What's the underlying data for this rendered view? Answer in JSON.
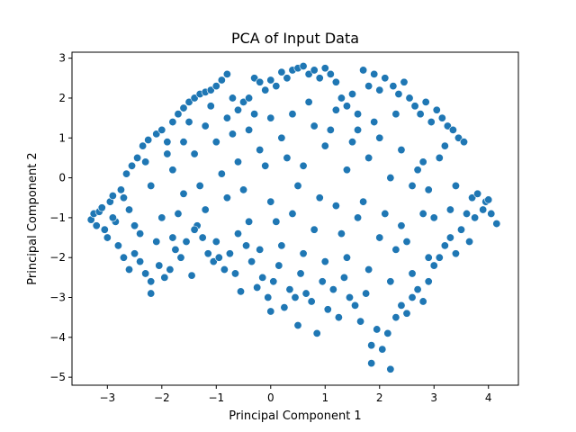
{
  "chart_data": {
    "type": "scatter",
    "title": "PCA of Input Data",
    "xlabel": "Principal Component 1",
    "ylabel": "Principal Component 2",
    "xlim": [
      -3.65,
      4.55
    ],
    "ylim": [
      -5.2,
      3.15
    ],
    "xticks": [
      -3,
      -2,
      -1,
      0,
      1,
      2,
      3,
      4
    ],
    "yticks": [
      -5,
      -4,
      -3,
      -2,
      -1,
      0,
      1,
      2,
      3
    ],
    "grid": false,
    "marker_color": "#1f77b4",
    "marker_edge_color": "#ffffff",
    "series": [
      {
        "points": [
          [
            -3.3,
            -1.05
          ],
          [
            -3.25,
            -0.9
          ],
          [
            -3.2,
            -1.2
          ],
          [
            -3.15,
            -0.85
          ],
          [
            -3.1,
            -0.75
          ],
          [
            -3.05,
            -1.3
          ],
          [
            -3.0,
            -1.5
          ],
          [
            -2.95,
            -0.6
          ],
          [
            -2.9,
            -0.45
          ],
          [
            -2.85,
            -1.1
          ],
          [
            -2.8,
            -1.7
          ],
          [
            -2.75,
            -0.3
          ],
          [
            -2.7,
            -2.0
          ],
          [
            -2.65,
            0.1
          ],
          [
            -2.6,
            -2.3
          ],
          [
            -2.55,
            0.3
          ],
          [
            -2.5,
            -1.9
          ],
          [
            -2.45,
            0.5
          ],
          [
            -2.4,
            -2.1
          ],
          [
            -2.35,
            0.8
          ],
          [
            -2.3,
            -2.4
          ],
          [
            -2.25,
            0.95
          ],
          [
            -2.2,
            -2.6
          ],
          [
            -2.2,
            -2.9
          ],
          [
            -2.1,
            1.1
          ],
          [
            -2.05,
            -2.2
          ],
          [
            -2.0,
            1.2
          ],
          [
            -1.95,
            -2.5
          ],
          [
            -1.9,
            0.6
          ],
          [
            -1.85,
            -2.3
          ],
          [
            -1.8,
            1.4
          ],
          [
            -1.75,
            -1.8
          ],
          [
            -1.7,
            1.6
          ],
          [
            -1.65,
            -2.0
          ],
          [
            -1.6,
            1.75
          ],
          [
            -1.55,
            -1.6
          ],
          [
            -1.5,
            1.9
          ],
          [
            -1.45,
            -2.45
          ],
          [
            -1.4,
            2.0
          ],
          [
            -1.35,
            -1.2
          ],
          [
            -1.3,
            2.1
          ],
          [
            -1.25,
            -1.5
          ],
          [
            -1.2,
            2.15
          ],
          [
            -1.15,
            -1.9
          ],
          [
            -1.1,
            2.2
          ],
          [
            -1.05,
            -2.1
          ],
          [
            -1.0,
            2.3
          ],
          [
            -0.95,
            -2.0
          ],
          [
            -0.9,
            2.45
          ],
          [
            -0.85,
            -2.3
          ],
          [
            -0.8,
            2.6
          ],
          [
            -0.75,
            -1.9
          ],
          [
            -0.7,
            2.0
          ],
          [
            -0.65,
            -2.4
          ],
          [
            -0.6,
            1.7
          ],
          [
            -0.55,
            -2.85
          ],
          [
            -0.5,
            1.9
          ],
          [
            -0.45,
            -1.7
          ],
          [
            -0.4,
            2.0
          ],
          [
            -0.35,
            -2.1
          ],
          [
            -0.3,
            2.5
          ],
          [
            -0.25,
            -2.75
          ],
          [
            -0.2,
            2.4
          ],
          [
            -0.15,
            -2.5
          ],
          [
            -0.1,
            2.2
          ],
          [
            -0.05,
            -3.0
          ],
          [
            0.0,
            2.45
          ],
          [
            0.0,
            -3.35
          ],
          [
            0.05,
            -2.6
          ],
          [
            0.1,
            2.3
          ],
          [
            0.15,
            -2.2
          ],
          [
            0.2,
            2.65
          ],
          [
            0.25,
            -3.25
          ],
          [
            0.3,
            2.5
          ],
          [
            0.35,
            -2.8
          ],
          [
            0.4,
            2.7
          ],
          [
            0.45,
            -3.0
          ],
          [
            0.5,
            2.75
          ],
          [
            0.5,
            -3.7
          ],
          [
            0.55,
            -2.4
          ],
          [
            0.6,
            2.8
          ],
          [
            0.65,
            -2.9
          ],
          [
            0.7,
            2.6
          ],
          [
            0.75,
            -3.1
          ],
          [
            0.8,
            2.7
          ],
          [
            0.85,
            -3.9
          ],
          [
            0.9,
            2.5
          ],
          [
            0.95,
            -2.6
          ],
          [
            1.0,
            2.75
          ],
          [
            1.05,
            -3.3
          ],
          [
            1.1,
            2.6
          ],
          [
            1.15,
            -2.8
          ],
          [
            1.2,
            2.4
          ],
          [
            1.25,
            -3.5
          ],
          [
            1.3,
            2.0
          ],
          [
            1.35,
            -2.5
          ],
          [
            1.4,
            1.8
          ],
          [
            1.45,
            -3.0
          ],
          [
            1.5,
            2.1
          ],
          [
            1.55,
            -3.2
          ],
          [
            1.6,
            1.6
          ],
          [
            1.65,
            -3.6
          ],
          [
            1.7,
            2.7
          ],
          [
            1.75,
            -2.9
          ],
          [
            1.8,
            2.3
          ],
          [
            1.85,
            -4.2
          ],
          [
            1.85,
            -4.65
          ],
          [
            1.9,
            2.6
          ],
          [
            1.95,
            -3.8
          ],
          [
            2.0,
            2.2
          ],
          [
            2.05,
            -4.3
          ],
          [
            2.1,
            2.5
          ],
          [
            2.15,
            -3.9
          ],
          [
            2.2,
            -4.8
          ],
          [
            2.25,
            2.3
          ],
          [
            2.3,
            -3.5
          ],
          [
            2.35,
            2.1
          ],
          [
            2.4,
            -3.2
          ],
          [
            2.45,
            2.4
          ],
          [
            2.5,
            -3.4
          ],
          [
            2.55,
            2.0
          ],
          [
            2.6,
            -3.0
          ],
          [
            2.65,
            1.8
          ],
          [
            2.7,
            -2.8
          ],
          [
            2.75,
            1.6
          ],
          [
            2.8,
            -3.1
          ],
          [
            2.85,
            1.9
          ],
          [
            2.9,
            -2.6
          ],
          [
            2.95,
            1.4
          ],
          [
            3.0,
            -2.2
          ],
          [
            3.05,
            1.7
          ],
          [
            3.1,
            -2.0
          ],
          [
            3.15,
            1.5
          ],
          [
            3.2,
            -1.7
          ],
          [
            3.25,
            1.3
          ],
          [
            3.3,
            -1.5
          ],
          [
            3.35,
            1.2
          ],
          [
            3.4,
            -1.9
          ],
          [
            3.45,
            1.0
          ],
          [
            3.5,
            -1.3
          ],
          [
            3.55,
            0.9
          ],
          [
            3.6,
            -0.9
          ],
          [
            3.65,
            -1.6
          ],
          [
            3.7,
            -0.5
          ],
          [
            3.75,
            -1.0
          ],
          [
            3.8,
            -0.4
          ],
          [
            3.9,
            -0.8
          ],
          [
            3.95,
            -0.6
          ],
          [
            4.0,
            -0.55
          ],
          [
            4.05,
            -0.9
          ],
          [
            4.15,
            -1.15
          ],
          [
            2.9,
            -0.3
          ],
          [
            -1.8,
            0.2
          ],
          [
            -1.6,
            -0.4
          ],
          [
            -1.4,
            0.6
          ],
          [
            -1.2,
            -0.8
          ],
          [
            -1.0,
            0.9
          ],
          [
            -0.8,
            -0.5
          ],
          [
            -0.6,
            0.4
          ],
          [
            -0.4,
            -1.1
          ],
          [
            -0.2,
            0.7
          ],
          [
            0.0,
            -0.6
          ],
          [
            0.2,
            1.0
          ],
          [
            0.4,
            -0.9
          ],
          [
            0.6,
            0.3
          ],
          [
            0.8,
            -1.3
          ],
          [
            1.0,
            0.8
          ],
          [
            1.2,
            -0.7
          ],
          [
            1.4,
            0.2
          ],
          [
            1.6,
            -1.0
          ],
          [
            1.8,
            0.5
          ],
          [
            2.0,
            -1.5
          ],
          [
            2.2,
            0.0
          ],
          [
            2.4,
            -1.2
          ],
          [
            2.6,
            -0.2
          ],
          [
            2.8,
            -0.9
          ],
          [
            -2.6,
            -0.8
          ],
          [
            -2.4,
            -1.4
          ],
          [
            -2.2,
            -0.2
          ],
          [
            -2.0,
            -1.0
          ],
          [
            -1.8,
            -1.5
          ],
          [
            -1.6,
            0.9
          ],
          [
            -1.4,
            -1.3
          ],
          [
            -1.2,
            1.3
          ],
          [
            -1.0,
            -1.6
          ],
          [
            -0.8,
            1.5
          ],
          [
            -0.6,
            -1.4
          ],
          [
            -0.4,
            1.2
          ],
          [
            -0.2,
            -1.8
          ],
          [
            0.0,
            1.5
          ],
          [
            0.2,
            -1.7
          ],
          [
            0.4,
            1.6
          ],
          [
            0.6,
            -1.9
          ],
          [
            0.8,
            1.3
          ],
          [
            1.0,
            -2.1
          ],
          [
            1.2,
            1.7
          ],
          [
            1.4,
            -2.0
          ],
          [
            1.6,
            1.2
          ],
          [
            1.8,
            -2.3
          ],
          [
            2.0,
            1.0
          ],
          [
            2.2,
            -2.6
          ],
          [
            2.4,
            0.7
          ],
          [
            2.6,
            -2.4
          ],
          [
            2.8,
            0.4
          ],
          [
            3.0,
            -1.0
          ],
          [
            3.2,
            0.8
          ],
          [
            3.4,
            -0.2
          ],
          [
            2.3,
            -1.8
          ],
          [
            -2.9,
            -1.0
          ],
          [
            -2.7,
            -0.5
          ],
          [
            -2.5,
            -1.2
          ],
          [
            -2.3,
            0.4
          ],
          [
            -2.1,
            -1.6
          ],
          [
            -1.9,
            0.9
          ],
          [
            -1.7,
            -0.9
          ],
          [
            -1.5,
            1.4
          ],
          [
            -1.3,
            -0.2
          ],
          [
            -1.1,
            1.8
          ],
          [
            -0.9,
            0.1
          ],
          [
            -0.7,
            1.1
          ],
          [
            -0.5,
            -0.3
          ],
          [
            -0.3,
            1.6
          ],
          [
            -0.1,
            0.3
          ],
          [
            0.1,
            -1.1
          ],
          [
            0.3,
            0.5
          ],
          [
            0.5,
            -0.2
          ],
          [
            0.7,
            1.9
          ],
          [
            0.9,
            -0.5
          ],
          [
            1.1,
            1.2
          ],
          [
            1.3,
            -1.4
          ],
          [
            1.5,
            0.9
          ],
          [
            1.7,
            -0.6
          ],
          [
            1.9,
            1.4
          ],
          [
            2.1,
            -0.9
          ],
          [
            2.3,
            1.6
          ],
          [
            2.5,
            -1.6
          ],
          [
            2.7,
            0.2
          ],
          [
            2.9,
            -2.0
          ],
          [
            3.1,
            0.5
          ],
          [
            3.3,
            -0.8
          ]
        ]
      }
    ]
  }
}
